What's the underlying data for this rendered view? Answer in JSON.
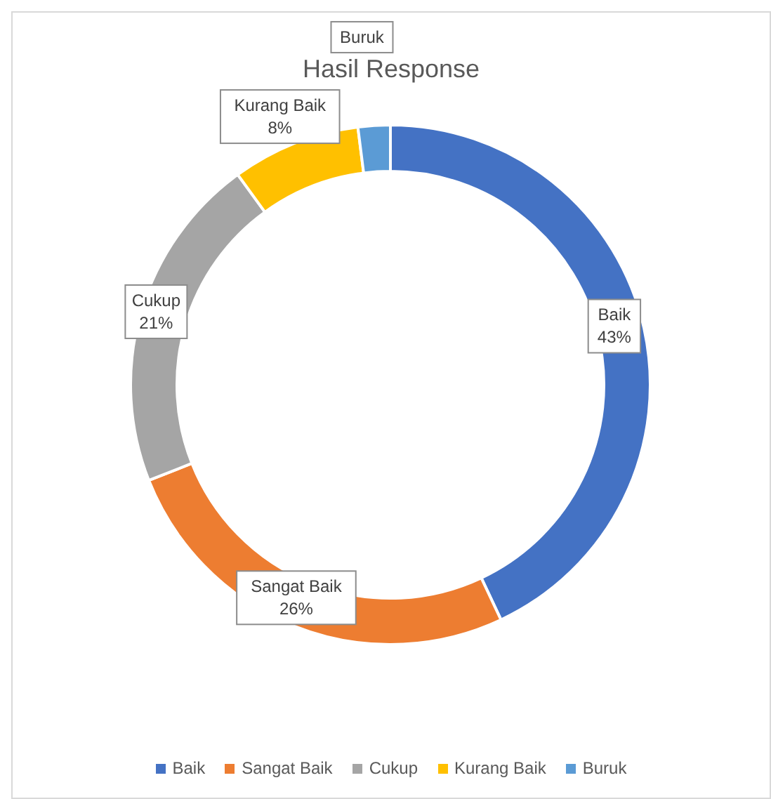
{
  "chart_data": {
    "type": "donut",
    "title": "Hasil Response",
    "categories": [
      "Baik",
      "Sangat Baik",
      "Cukup",
      "Kurang Baik",
      "Buruk"
    ],
    "values": [
      43,
      26,
      21,
      8,
      2
    ],
    "colors": [
      "#4472c4",
      "#ed7d31",
      "#a5a5a5",
      "#ffc000",
      "#5b9bd5"
    ],
    "value_labels": [
      "43%",
      "26%",
      "21%",
      "8%",
      null
    ],
    "legend": "bottom"
  }
}
